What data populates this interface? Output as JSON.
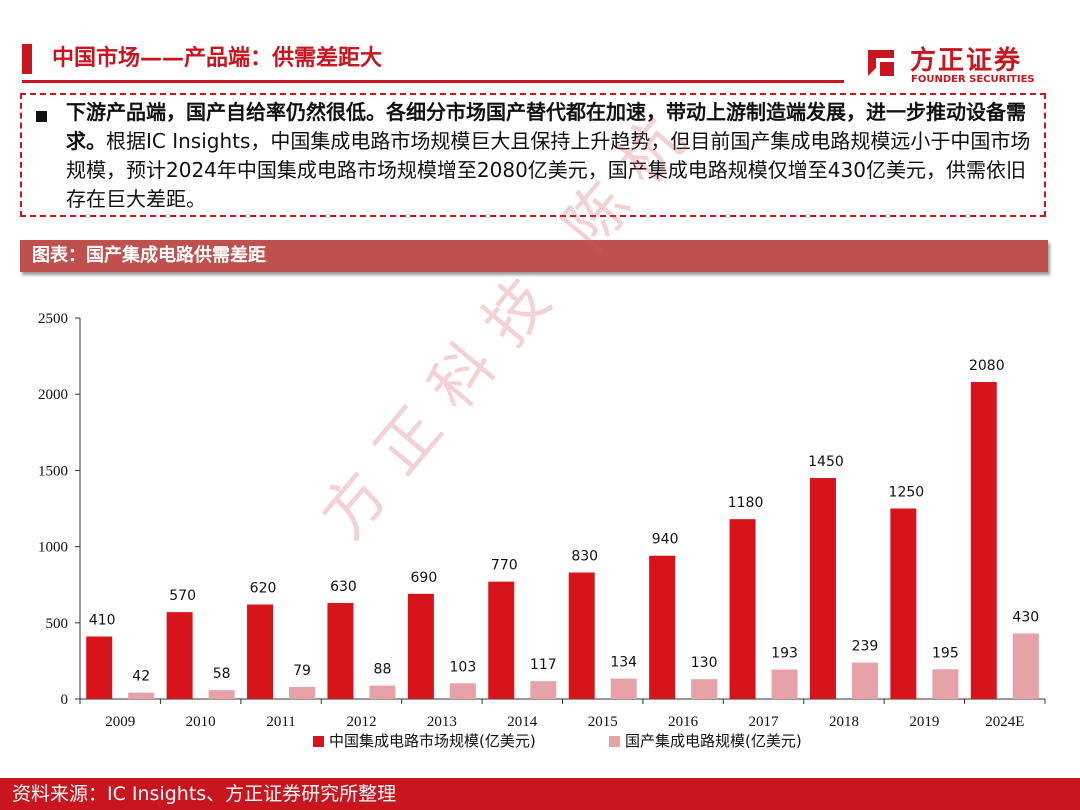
{
  "page": {
    "title": "中国市场——产品端：供需差距大",
    "logo_cn": "方正证券",
    "logo_en": "FOUNDER SECURITIES",
    "description_bold": "下游产品端，国产自给率仍然很低。各细分市场国产替代都在加速，带动上游制造端发展，进一步推动设备需求。",
    "description_rest": "根据IC Insights，中国集成电路市场规模巨大且保持上升趋势，但目前国产集成电路规模远小于中国市场规模，预计2024年中国集成电路市场规模增至2080亿美元，国产集成电路规模仅增至430亿美元，供需依旧存在巨大差距。",
    "chart_header": "图表：国产集成电路供需差距",
    "watermark": "方正科技 陈杭",
    "source": "资料来源：IC Insights、方正证券研究所整理"
  },
  "colors": {
    "brand_red": "#c9151e",
    "series_1": "#d7141c",
    "series_2": "#e6a2a6",
    "header_bg": "#c0504d"
  },
  "chart_data": {
    "type": "bar",
    "categories": [
      "2009",
      "2010",
      "2011",
      "2012",
      "2013",
      "2014",
      "2015",
      "2016",
      "2017",
      "2018",
      "2019",
      "2024E"
    ],
    "series": [
      {
        "name": "中国集成电路市场规模(亿美元)",
        "values": [
          410,
          570,
          620,
          630,
          690,
          770,
          830,
          940,
          1180,
          1450,
          1250,
          2080
        ]
      },
      {
        "name": "国产集成电路规模(亿美元)",
        "values": [
          42,
          58,
          79,
          88,
          103,
          117,
          134,
          130,
          193,
          239,
          195,
          430
        ]
      }
    ],
    "ylim": [
      0,
      2500
    ],
    "yticks": [
      0,
      500,
      1000,
      1500,
      2000,
      2500
    ],
    "grid": false,
    "legend_position": "bottom",
    "data_labels": true
  }
}
